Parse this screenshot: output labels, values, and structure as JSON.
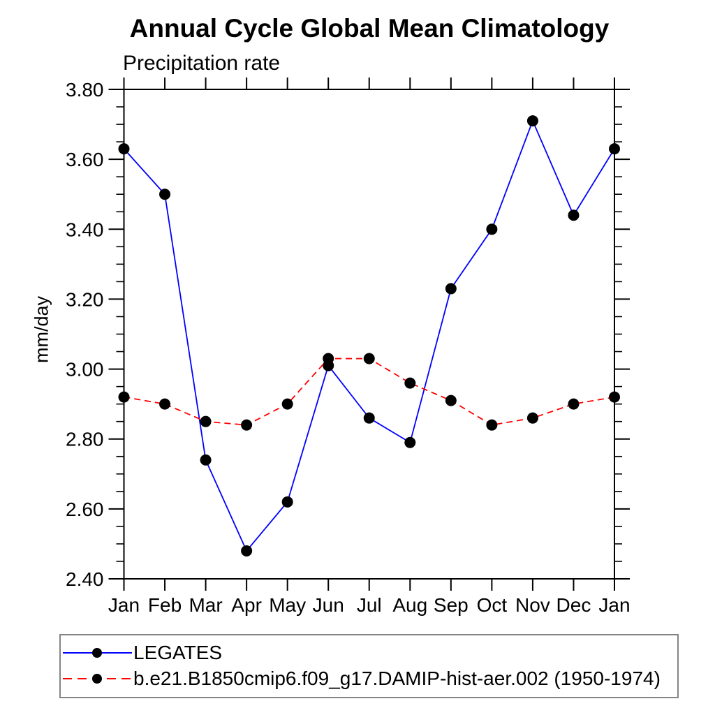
{
  "chart_data": {
    "type": "line",
    "title": "Annual Cycle Global Mean Climatology",
    "subtitle": "Precipitation rate",
    "ylabel": "mm/day",
    "xlabel": "",
    "categories": [
      "Jan",
      "Feb",
      "Mar",
      "Apr",
      "May",
      "Jun",
      "Jul",
      "Aug",
      "Sep",
      "Oct",
      "Nov",
      "Dec",
      "Jan"
    ],
    "ylim": [
      2.4,
      3.8
    ],
    "ytick_step": 0.2,
    "yminor_step": 0.05,
    "ytick_labels": [
      "2.40",
      "2.60",
      "2.80",
      "3.00",
      "3.20",
      "3.40",
      "3.60",
      "3.80"
    ],
    "grid": false,
    "legend_position": "bottom-left",
    "axis_color": "#000000",
    "series": [
      {
        "name": "LEGATES",
        "color": "#0000ff",
        "line_style": "solid",
        "marker": "filled-circle",
        "marker_color": "#000000",
        "values": [
          3.63,
          3.5,
          2.74,
          2.48,
          2.62,
          3.01,
          2.86,
          2.79,
          3.23,
          3.4,
          3.71,
          3.44,
          3.63
        ]
      },
      {
        "name": "b.e21.B1850cmip6.f09_g17.DAMIP-hist-aer.002 (1950-1974)",
        "color": "#ff0000",
        "line_style": "dashed",
        "marker": "filled-circle",
        "marker_color": "#000000",
        "values": [
          2.92,
          2.9,
          2.85,
          2.84,
          2.9,
          3.03,
          3.03,
          2.96,
          2.91,
          2.84,
          2.86,
          2.9,
          2.92
        ]
      }
    ]
  }
}
